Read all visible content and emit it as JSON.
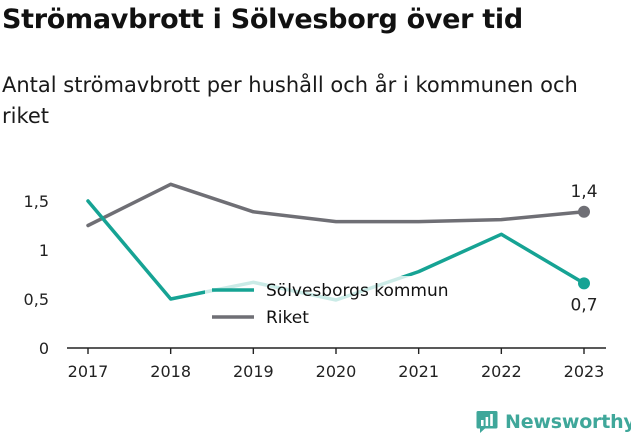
{
  "title": "Strömavbrott i Sölvesborg över tid",
  "subtitle": "Antal strömavbrott per hushåll och år i kommunen och riket",
  "brand": {
    "name": "Newsworthy",
    "icon": "newsworthy-logo-icon"
  },
  "colors": {
    "solvesborg": "#16a394",
    "riket": "#6f6f75",
    "axis": "#222222",
    "brand": "#3fa79a"
  },
  "chart_data": {
    "type": "line",
    "title": "Strömavbrott i Sölvesborg över tid",
    "subtitle": "Antal strömavbrott per hushåll och år i kommunen och riket",
    "xlabel": "",
    "ylabel": "",
    "x": [
      "2017",
      "2018",
      "2019",
      "2020",
      "2021",
      "2022",
      "2023"
    ],
    "ylim": [
      0,
      1.5
    ],
    "yticks": [
      {
        "value": 0,
        "label": "0"
      },
      {
        "value": 0.5,
        "label": "0,5"
      },
      {
        "value": 1,
        "label": "1"
      },
      {
        "value": 1.5,
        "label": "1,5"
      }
    ],
    "grid": false,
    "legend": "center",
    "series": [
      {
        "name": "Sölvesborgs kommun",
        "color": "#16a394",
        "values": [
          1.5,
          0.5,
          0.67,
          0.49,
          0.78,
          1.16,
          0.66
        ],
        "end_label": "0,7"
      },
      {
        "name": "Riket",
        "color": "#6f6f75",
        "values": [
          1.25,
          1.67,
          1.39,
          1.29,
          1.29,
          1.31,
          1.39
        ],
        "end_label": "1,4"
      }
    ]
  }
}
